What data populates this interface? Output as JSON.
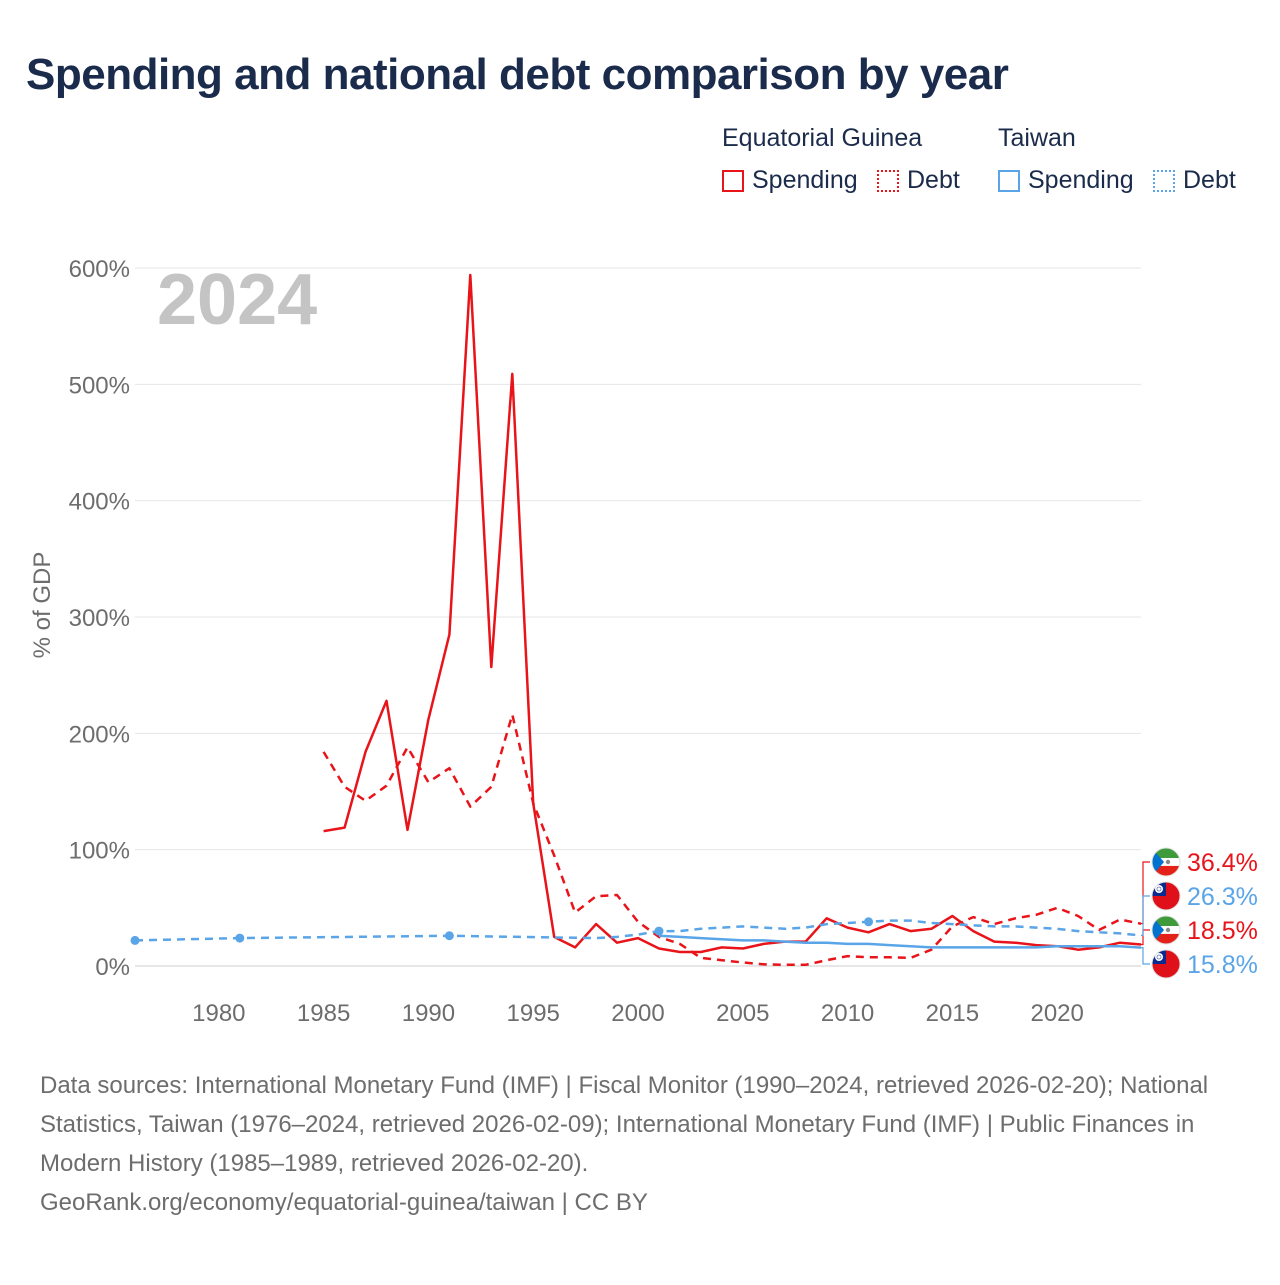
{
  "title": "Spending and national debt comparison by year",
  "legend": {
    "groups": [
      {
        "name": "Equatorial Guinea",
        "color": "#e8141a",
        "items": [
          {
            "label": "Spending",
            "style": "solid"
          },
          {
            "label": "Debt",
            "style": "dotted"
          }
        ]
      },
      {
        "name": "Taiwan",
        "color": "#5aa5e8",
        "items": [
          {
            "label": "Spending",
            "style": "solid"
          },
          {
            "label": "Debt",
            "style": "dotted"
          }
        ]
      }
    ]
  },
  "year_label": "2024",
  "end_labels": [
    {
      "text": "36.4%",
      "country": "Equatorial Guinea",
      "flag": "equatorial-guinea-flag-icon",
      "color": "#e8141a"
    },
    {
      "text": "26.3%",
      "country": "Taiwan",
      "flag": "taiwan-flag-icon",
      "color": "#5aa5e8"
    },
    {
      "text": "18.5%",
      "country": "Equatorial Guinea",
      "flag": "equatorial-guinea-flag-icon",
      "color": "#e8141a"
    },
    {
      "text": "15.8%",
      "country": "Taiwan",
      "flag": "taiwan-flag-icon",
      "color": "#5aa5e8"
    }
  ],
  "sources": {
    "text": "Data sources: International Monetary Fund (IMF) | Fiscal Monitor (1990–2024, retrieved 2026-02-20); National Statistics, Taiwan (1976–2024, retrieved 2026-02-09); International Monetary Fund (IMF) | Public Finances in Modern History (1985–1989, retrieved 2026-02-20).",
    "link": "GeoRank.org/economy/equatorial-guinea/taiwan | CC BY"
  },
  "chart_data": {
    "type": "line",
    "title": "Spending and national debt comparison by year",
    "xlabel": "",
    "ylabel": "% of GDP",
    "xlim": [
      1976,
      2024
    ],
    "ylim": [
      0,
      600
    ],
    "xticks": [
      1980,
      1985,
      1990,
      1995,
      2000,
      2005,
      2010,
      2015,
      2020
    ],
    "yticks": [
      0,
      100,
      200,
      300,
      400,
      500,
      600
    ],
    "ytick_labels": [
      "0%",
      "100%",
      "200%",
      "300%",
      "400%",
      "500%",
      "600%"
    ],
    "grid": true,
    "series": [
      {
        "name": "Equatorial Guinea Spending",
        "color": "#e8141a",
        "dash": "solid",
        "x": [
          1985,
          1986,
          1987,
          1988,
          1989,
          1990,
          1991,
          1992,
          1993,
          1994,
          1995,
          1996,
          1997,
          1998,
          1999,
          2000,
          2001,
          2002,
          2003,
          2004,
          2005,
          2006,
          2007,
          2008,
          2009,
          2010,
          2011,
          2012,
          2013,
          2014,
          2015,
          2016,
          2017,
          2018,
          2019,
          2020,
          2021,
          2022,
          2023,
          2024
        ],
        "values": [
          116,
          119,
          184,
          228,
          117,
          212,
          285,
          594,
          257,
          509,
          140,
          25,
          16,
          36,
          20,
          24,
          15,
          12,
          12,
          16,
          15,
          19,
          21,
          21,
          41,
          33,
          29,
          36,
          30,
          32,
          43,
          30,
          21,
          20,
          18,
          17,
          14,
          16,
          20,
          18.5
        ]
      },
      {
        "name": "Equatorial Guinea Debt",
        "color": "#e8141a",
        "dash": "dashed",
        "x": [
          1985,
          1986,
          1987,
          1988,
          1989,
          1990,
          1991,
          1992,
          1993,
          1994,
          1995,
          1996,
          1997,
          1998,
          1999,
          2000,
          2001,
          2002,
          2003,
          2004,
          2005,
          2006,
          2007,
          2008,
          2009,
          2010,
          2011,
          2012,
          2013,
          2014,
          2015,
          2016,
          2017,
          2018,
          2019,
          2020,
          2021,
          2022,
          2023,
          2024
        ],
        "values": [
          184,
          154,
          142,
          155,
          188,
          158,
          170,
          137,
          154,
          216,
          140,
          95,
          46,
          60,
          61,
          38,
          25,
          19,
          7,
          5,
          3,
          1.5,
          1,
          1,
          5,
          8.5,
          7.5,
          7.5,
          7,
          14,
          34,
          42,
          36,
          41,
          44,
          50,
          43,
          31,
          40,
          36.4
        ]
      },
      {
        "name": "Taiwan Spending",
        "color": "#5aa5e8",
        "dash": "solid",
        "x": [
          2001,
          2002,
          2003,
          2004,
          2005,
          2006,
          2007,
          2008,
          2009,
          2010,
          2011,
          2012,
          2013,
          2014,
          2015,
          2016,
          2017,
          2018,
          2019,
          2020,
          2021,
          2022,
          2023,
          2024
        ],
        "values": [
          26,
          25,
          24,
          23,
          22,
          22,
          21,
          20,
          20,
          19,
          19,
          18,
          17,
          16,
          16,
          16,
          16,
          16,
          16,
          17,
          17,
          17,
          17,
          15.8
        ]
      },
      {
        "name": "Taiwan Debt",
        "color": "#5aa5e8",
        "dash": "dashed",
        "x": [
          1976,
          1981,
          1991,
          1998,
          1999,
          2000,
          2001,
          2002,
          2003,
          2004,
          2005,
          2006,
          2007,
          2008,
          2009,
          2010,
          2011,
          2012,
          2013,
          2014,
          2015,
          2016,
          2017,
          2018,
          2019,
          2020,
          2021,
          2022,
          2023,
          2024
        ],
        "values": [
          22,
          24,
          26,
          24,
          25,
          27,
          30,
          30,
          32,
          33,
          34,
          33,
          32,
          33,
          36,
          37,
          38,
          39,
          39,
          37,
          36,
          35,
          34,
          34,
          33,
          32,
          30,
          29,
          28,
          26.3
        ],
        "markers_at": [
          1976,
          1981,
          1991,
          2001,
          2011
        ]
      }
    ]
  }
}
